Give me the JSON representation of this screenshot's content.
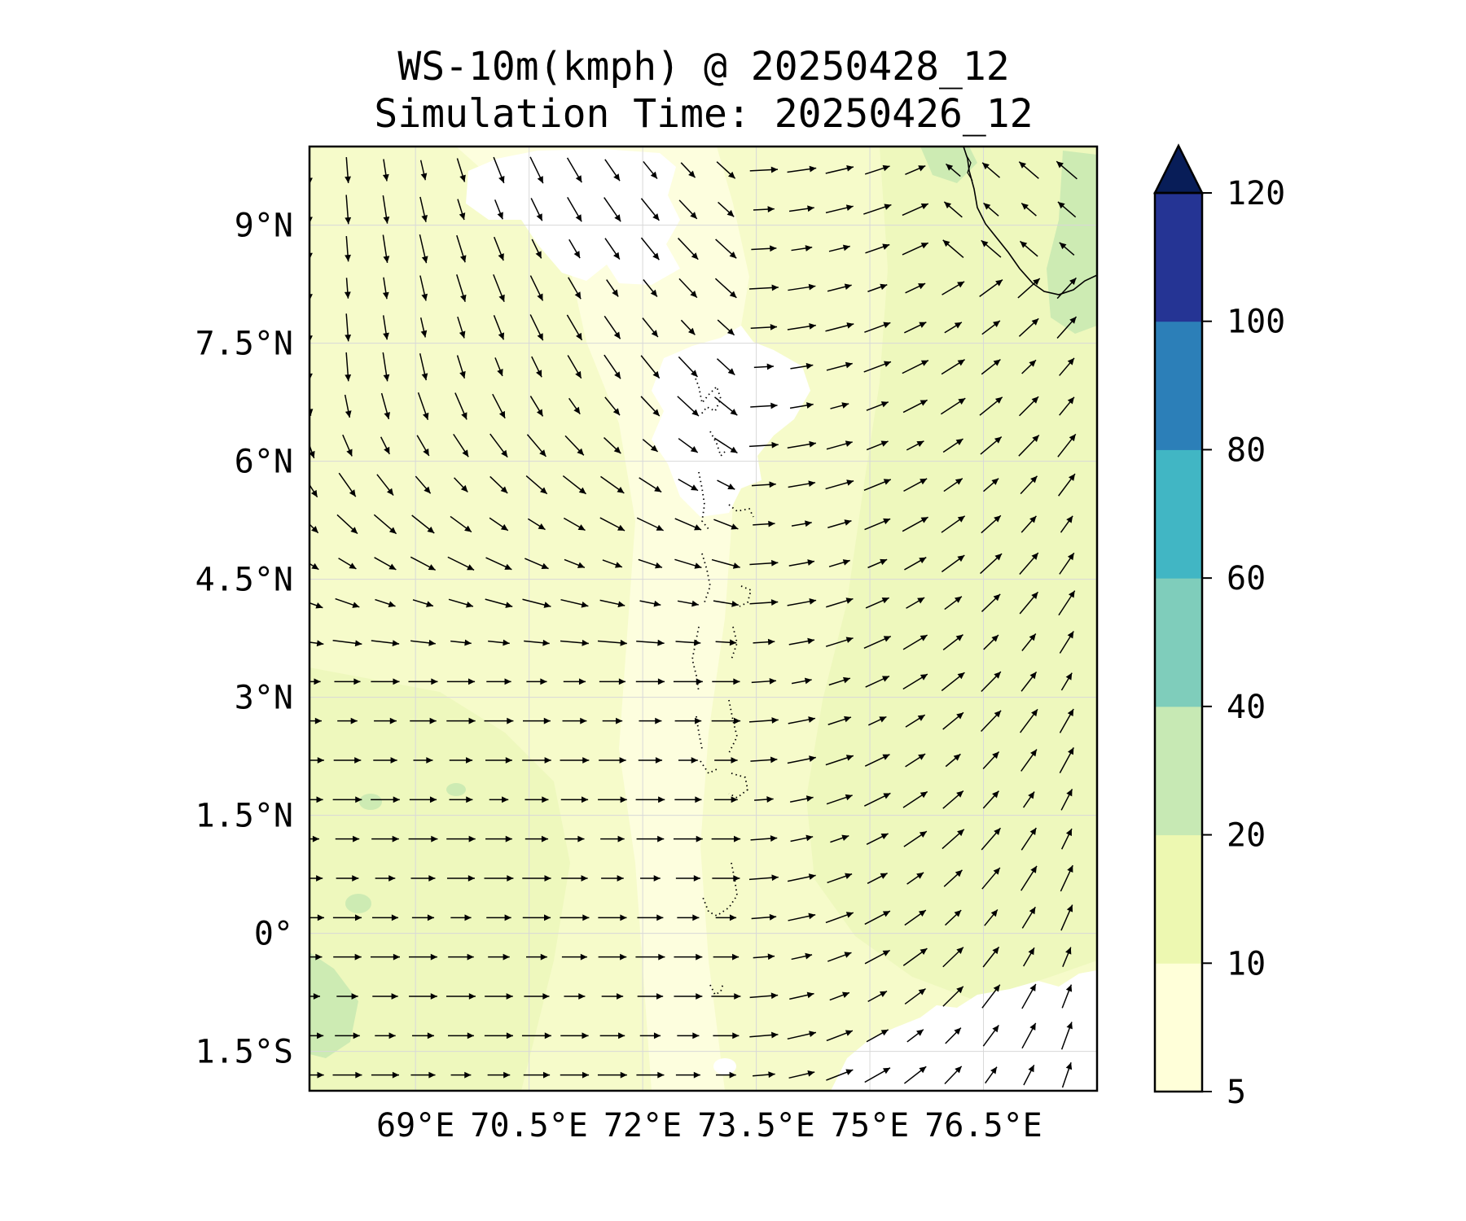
{
  "title": {
    "line1": "WS-10m(kmph) @ 20250428_12",
    "line2": "Simulation Time: 20250426_12"
  },
  "map": {
    "lon_range": [
      67.6,
      78.0
    ],
    "lat_range": [
      -2.0,
      10.0
    ],
    "lon_ticks": [
      {
        "value": 69.0,
        "label": "69°E"
      },
      {
        "value": 70.5,
        "label": "70.5°E"
      },
      {
        "value": 72.0,
        "label": "72°E"
      },
      {
        "value": 73.5,
        "label": "73.5°E"
      },
      {
        "value": 75.0,
        "label": "75°E"
      },
      {
        "value": 76.5,
        "label": "76.5°E"
      }
    ],
    "lat_ticks": [
      {
        "value": 9.0,
        "label": "9°N"
      },
      {
        "value": 7.5,
        "label": "7.5°N"
      },
      {
        "value": 6.0,
        "label": "6°N"
      },
      {
        "value": 4.5,
        "label": "4.5°N"
      },
      {
        "value": 3.0,
        "label": "3°N"
      },
      {
        "value": 1.5,
        "label": "1.5°N"
      },
      {
        "value": 0.0,
        "label": "0°"
      },
      {
        "value": -1.5,
        "label": "1.5°S"
      }
    ],
    "gridlines": true,
    "wind_vectors": {
      "lon_start": 67.6,
      "lon_step": 0.5,
      "cols": 21,
      "lat_start": 9.7,
      "lat_step": -0.5,
      "rows": 24
    }
  },
  "colorbar": {
    "levels": [
      5,
      10,
      20,
      40,
      60,
      80,
      100,
      120
    ],
    "tick_labels": [
      "5",
      "10",
      "20",
      "40",
      "60",
      "80",
      "100",
      "120"
    ],
    "colors": [
      "#ffffd9",
      "#edf8b1",
      "#c7e9b4",
      "#7fcdbb",
      "#41b6c4",
      "#2c7fb8",
      "#253494"
    ],
    "extend_color": "#081d58",
    "extend": "max"
  },
  "colors": {
    "field_base": "#f6fbca",
    "field_light": "#fdfede",
    "field_mid": "#e8f5b4",
    "field_high": "#cdebb3",
    "calm": "#ffffff",
    "coast": "#000000",
    "grid": "#d8d8d8"
  }
}
